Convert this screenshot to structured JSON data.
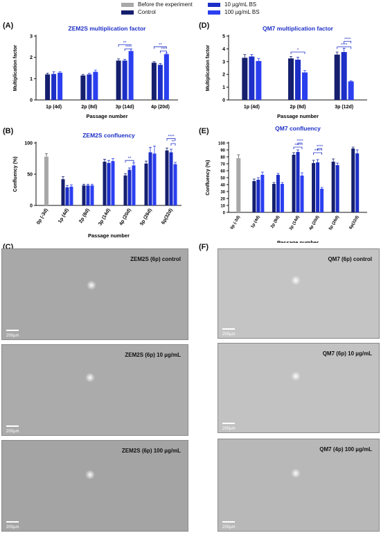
{
  "legend": {
    "items": [
      {
        "label": "Before the experiment",
        "color": "#a8a8a8"
      },
      {
        "label": "Control",
        "color": "#151f6e"
      },
      {
        "label": "10 µg/mL BS",
        "color": "#1d2fc7"
      },
      {
        "label": "100 µg/mL BS",
        "color": "#2b3ff0"
      }
    ]
  },
  "panels": {
    "A": "(A)",
    "B": "(B)",
    "C": "(C)",
    "D": "(D)",
    "E": "(E)",
    "F": "(F)"
  },
  "chart_data": [
    {
      "id": "A",
      "type": "bar",
      "title": "ZEM2S multiplication factor",
      "xlabel": "Passage number",
      "ylabel": "Multiplication factor",
      "ylim": [
        0,
        3
      ],
      "yticks": [
        "0",
        "1",
        "2",
        "3"
      ],
      "categories": [
        "1p (4d)",
        "2p (8d)",
        "3p (14d)",
        "4p (20d)"
      ],
      "series": [
        {
          "name": "Control",
          "color": "#151f6e",
          "values": [
            1.2,
            1.15,
            1.85,
            1.75
          ]
        },
        {
          "name": "10 µg/mL BS",
          "color": "#1d2fc7",
          "values": [
            1.22,
            1.2,
            1.85,
            1.65
          ]
        },
        {
          "name": "100 µg/mL BS",
          "color": "#2b3ff0",
          "values": [
            1.28,
            1.32,
            2.3,
            2.15
          ]
        }
      ],
      "errors": [
        [
          0.06,
          0.05,
          0.08,
          0.05
        ],
        [
          0.1,
          0.05,
          0.06,
          0.06
        ],
        [
          0.05,
          0.08,
          0.1,
          0.05
        ]
      ],
      "sig": [
        {
          "label": "**",
          "from": [
            2,
            0
          ],
          "to": [
            2,
            2
          ],
          "level": 2.6
        },
        {
          "label": "***",
          "from": [
            2,
            1
          ],
          "to": [
            2,
            2
          ],
          "level": 2.4
        },
        {
          "label": "**",
          "from": [
            3,
            0
          ],
          "to": [
            3,
            2
          ],
          "level": 2.5
        },
        {
          "label": "***",
          "from": [
            3,
            1
          ],
          "to": [
            3,
            2
          ],
          "level": 2.3
        }
      ]
    },
    {
      "id": "D",
      "type": "bar",
      "title": "QM7 multiplication factor",
      "xlabel": "Passage number",
      "ylabel": "Multiplication factor",
      "ylim": [
        0,
        5
      ],
      "yticks": [
        "0",
        "1",
        "2",
        "3",
        "4",
        "5"
      ],
      "categories": [
        "1p (4d)",
        "2p (8d)",
        "3p (12d)"
      ],
      "series": [
        {
          "name": "Control",
          "color": "#151f6e",
          "values": [
            3.3,
            3.25,
            3.55
          ]
        },
        {
          "name": "10 µg/mL BS",
          "color": "#1d2fc7",
          "values": [
            3.4,
            3.15,
            3.75
          ]
        },
        {
          "name": "100 µg/mL BS",
          "color": "#2b3ff0",
          "values": [
            3.05,
            2.15,
            1.45
          ]
        }
      ],
      "errors": [
        [
          0.25,
          0.15,
          0.2
        ],
        [
          0.15,
          0.2,
          0.3
        ],
        [
          0.2,
          0.15,
          0.05
        ]
      ],
      "sig": [
        {
          "label": "*",
          "from": [
            1,
            0
          ],
          "to": [
            1,
            2
          ],
          "level": 3.75
        },
        {
          "label": "****",
          "from": [
            2,
            1
          ],
          "to": [
            2,
            2
          ],
          "level": 4.6
        },
        {
          "label": "****",
          "from": [
            2,
            0
          ],
          "to": [
            2,
            2
          ],
          "level": 4.15
        }
      ]
    },
    {
      "id": "B",
      "type": "bar",
      "title": "ZEM2S confluency",
      "xlabel": "Passage number",
      "ylabel": "Confluency (%)",
      "ylim": [
        0,
        100
      ],
      "yticks": [
        "0",
        "50",
        "100"
      ],
      "categories": [
        "0p (-3d)",
        "1p (4d)",
        "2p (8d)",
        "3p (14d)",
        "4p (20d)",
        "5p (26d)",
        "6p(32d)"
      ],
      "before": {
        "index": 0,
        "value": 78,
        "error": 5
      },
      "series": [
        {
          "name": "Control",
          "color": "#151f6e",
          "values": [
            null,
            42,
            32,
            70,
            48,
            67,
            88
          ]
        },
        {
          "name": "10 µg/mL BS",
          "color": "#1d2fc7",
          "values": [
            null,
            29,
            32,
            68,
            57,
            85,
            85
          ]
        },
        {
          "name": "100 µg/mL BS",
          "color": "#2b3ff0",
          "values": [
            null,
            30,
            32,
            71,
            64,
            83,
            66
          ]
        }
      ],
      "errors": [
        [
          0,
          4,
          2,
          4,
          3,
          4,
          4
        ],
        [
          0,
          3,
          2,
          4,
          3,
          8,
          5
        ],
        [
          0,
          3,
          2,
          4,
          4,
          12,
          3
        ]
      ],
      "sig": [
        {
          "label": "**",
          "from": [
            4,
            0
          ],
          "to": [
            4,
            2
          ],
          "level": 72
        },
        {
          "label": "****",
          "from": [
            6,
            0
          ],
          "to": [
            6,
            2
          ],
          "level": 107
        },
        {
          "label": "**",
          "from": [
            6,
            1
          ],
          "to": [
            6,
            2
          ],
          "level": 99
        }
      ]
    },
    {
      "id": "E",
      "type": "bar",
      "title": "QM7 confluency",
      "xlabel": "Passage number",
      "ylabel": "Confluency (%)",
      "ylim": [
        0,
        100
      ],
      "yticks": [
        "0",
        "10",
        "20",
        "30",
        "40",
        "50",
        "60",
        "70",
        "80",
        "90",
        "100"
      ],
      "categories": [
        "0p (-3d)",
        "1p (4d)",
        "2p (8d)",
        "3p (14d)",
        "4p (20d)",
        "5p (26d)",
        "6p(32d)"
      ],
      "before": {
        "index": 0,
        "value": 78,
        "error": 5
      },
      "series": [
        {
          "name": "Control",
          "color": "#151f6e",
          "values": [
            null,
            45,
            41,
            83,
            71,
            73,
            92
          ]
        },
        {
          "name": "10 µg/mL BS",
          "color": "#1d2fc7",
          "values": [
            null,
            47,
            54,
            87,
            72,
            68,
            85
          ]
        },
        {
          "name": "100 µg/mL BS",
          "color": "#2b3ff0",
          "values": [
            null,
            54,
            41,
            53,
            34,
            null,
            null
          ]
        }
      ],
      "errors": [
        [
          0,
          3,
          2,
          3,
          4,
          4,
          2
        ],
        [
          0,
          3,
          2,
          3,
          4,
          3,
          5
        ],
        [
          0,
          4,
          2,
          4,
          2,
          0,
          0
        ]
      ],
      "sig": [
        {
          "label": "****",
          "from": [
            3,
            0
          ],
          "to": [
            3,
            2
          ],
          "level": 94
        },
        {
          "label": "****",
          "from": [
            3,
            1
          ],
          "to": [
            3,
            2
          ],
          "level": 100
        },
        {
          "label": "****",
          "from": [
            4,
            0
          ],
          "to": [
            4,
            2
          ],
          "level": 86
        },
        {
          "label": "****",
          "from": [
            4,
            1
          ],
          "to": [
            4,
            2
          ],
          "level": 92
        }
      ]
    }
  ],
  "micrographs": {
    "left": [
      {
        "caption": "ZEM2S (6p) control",
        "scale": "200µm"
      },
      {
        "caption": "ZEM2S (6p) 10 µg/mL",
        "scale": "200µm"
      },
      {
        "caption": "ZEM2S (6p) 100 µg/mL",
        "scale": "200µm"
      }
    ],
    "right": [
      {
        "caption": "QM7 (6p) control",
        "scale": "200µm"
      },
      {
        "caption": "QM7 (6p) 10 µg/mL",
        "scale": "200µm"
      },
      {
        "caption": "QM7 (4p) 100 µg/mL",
        "scale": "200µm"
      }
    ]
  }
}
